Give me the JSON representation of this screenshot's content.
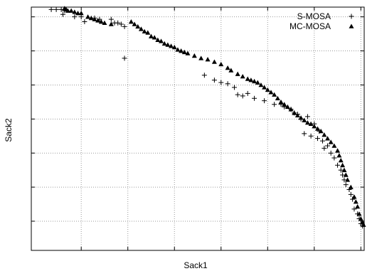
{
  "chart_data": {
    "type": "scatter",
    "title": "",
    "xlabel": "Sack1",
    "ylabel": "Sack2",
    "tick_labels_shown": false,
    "grid": true,
    "legend_position": "top-right",
    "xlim": [
      0,
      100
    ],
    "ylim": [
      0,
      100
    ],
    "x_ticks": [
      15,
      29,
      43,
      57,
      71,
      85,
      99
    ],
    "y_ticks": [
      12,
      26,
      40,
      54,
      68,
      82,
      96
    ],
    "series": [
      {
        "name": "S-MOSA",
        "marker": "plus",
        "color": "#000000",
        "points": [
          [
            6,
            99
          ],
          [
            7.5,
            99
          ],
          [
            9,
            99
          ],
          [
            10,
            98.5
          ],
          [
            9.5,
            97
          ],
          [
            13,
            96
          ],
          [
            15,
            96
          ],
          [
            19,
            95.5
          ],
          [
            20.5,
            95
          ],
          [
            16,
            94
          ],
          [
            24,
            95
          ],
          [
            25,
            93.5
          ],
          [
            26,
            93.5
          ],
          [
            27,
            93
          ],
          [
            28,
            92
          ],
          [
            28,
            79
          ],
          [
            52,
            72
          ],
          [
            55,
            70
          ],
          [
            57,
            69
          ],
          [
            59,
            68.5
          ],
          [
            61,
            67
          ],
          [
            62,
            64
          ],
          [
            63.5,
            63.5
          ],
          [
            65,
            64.5
          ],
          [
            67,
            62.5
          ],
          [
            70,
            61.5
          ],
          [
            73,
            60
          ],
          [
            75,
            60
          ],
          [
            76,
            59
          ],
          [
            78,
            58
          ],
          [
            79,
            56.5
          ],
          [
            80,
            56
          ],
          [
            81,
            54
          ],
          [
            83,
            55
          ],
          [
            85,
            52
          ],
          [
            86.5,
            49
          ],
          [
            82,
            48
          ],
          [
            84,
            47
          ],
          [
            86,
            46
          ],
          [
            87.5,
            45
          ],
          [
            88,
            42
          ],
          [
            89,
            43
          ],
          [
            90,
            40
          ],
          [
            91,
            38
          ],
          [
            92,
            35
          ],
          [
            93,
            33
          ],
          [
            93.5,
            31
          ],
          [
            94,
            29
          ],
          [
            94.5,
            27
          ],
          [
            95.5,
            25
          ],
          [
            96,
            23
          ],
          [
            96.5,
            21
          ],
          [
            97,
            17
          ],
          [
            98,
            15
          ],
          [
            98.5,
            13
          ],
          [
            99,
            11
          ],
          [
            99.5,
            10
          ]
        ]
      },
      {
        "name": "MC-MOSA",
        "marker": "triangle",
        "color": "#000000",
        "points": [
          [
            10,
            99.5
          ],
          [
            10.5,
            99
          ],
          [
            11,
            98.5
          ],
          [
            12,
            98.5
          ],
          [
            13,
            98
          ],
          [
            14,
            97.5
          ],
          [
            15,
            97.5
          ],
          [
            17,
            96
          ],
          [
            18,
            95.5
          ],
          [
            19,
            95
          ],
          [
            20,
            94.5
          ],
          [
            21,
            94
          ],
          [
            22,
            93.5
          ],
          [
            24,
            93
          ],
          [
            30,
            94
          ],
          [
            31,
            93
          ],
          [
            32,
            92
          ],
          [
            33,
            91
          ],
          [
            34,
            90
          ],
          [
            35,
            89.5
          ],
          [
            36,
            88
          ],
          [
            37,
            87.5
          ],
          [
            38,
            86.5
          ],
          [
            39,
            86
          ],
          [
            40,
            85
          ],
          [
            41,
            84.5
          ],
          [
            42,
            84
          ],
          [
            43,
            83.5
          ],
          [
            44,
            82.5
          ],
          [
            45,
            82
          ],
          [
            46,
            81.5
          ],
          [
            47,
            81
          ],
          [
            49,
            80
          ],
          [
            51,
            79
          ],
          [
            53,
            78.5
          ],
          [
            55,
            77.5
          ],
          [
            57,
            76.5
          ],
          [
            59,
            75
          ],
          [
            60,
            74
          ],
          [
            62,
            72.5
          ],
          [
            63.5,
            71.5
          ],
          [
            65,
            70.5
          ],
          [
            66,
            70
          ],
          [
            67,
            69.5
          ],
          [
            68,
            69
          ],
          [
            69,
            68
          ],
          [
            70,
            67
          ],
          [
            71,
            66
          ],
          [
            72,
            65
          ],
          [
            73,
            64
          ],
          [
            74,
            62.5
          ],
          [
            75,
            61
          ],
          [
            76,
            60
          ],
          [
            77,
            59
          ],
          [
            78,
            58
          ],
          [
            79,
            56.5
          ],
          [
            80,
            55.5
          ],
          [
            81,
            54.5
          ],
          [
            82,
            53.5
          ],
          [
            83,
            52.5
          ],
          [
            84,
            52
          ],
          [
            85,
            51
          ],
          [
            86,
            50
          ],
          [
            87,
            49
          ],
          [
            88,
            47.5
          ],
          [
            89,
            46
          ],
          [
            90,
            44.5
          ],
          [
            91,
            43
          ],
          [
            92,
            41
          ],
          [
            92.5,
            39
          ],
          [
            93,
            37
          ],
          [
            93.5,
            35
          ],
          [
            94,
            33
          ],
          [
            94.5,
            31
          ],
          [
            95,
            29
          ],
          [
            96,
            26
          ],
          [
            97,
            22
          ],
          [
            97.5,
            20
          ],
          [
            98,
            18
          ],
          [
            98.5,
            15
          ],
          [
            99,
            13
          ],
          [
            99.5,
            11.5
          ],
          [
            99.8,
            10.5
          ]
        ]
      }
    ]
  }
}
